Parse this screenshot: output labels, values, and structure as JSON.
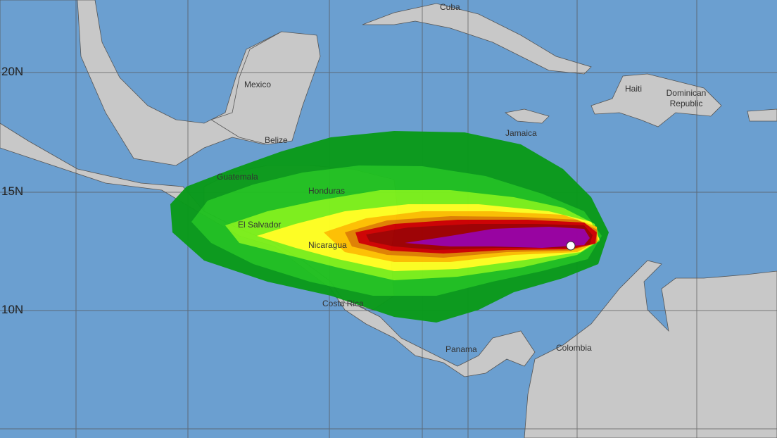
{
  "map": {
    "latitude_labels": [
      "20N",
      "15N",
      "10N"
    ],
    "countries": [
      "Cuba",
      "Mexico",
      "Haiti",
      "Dominican Republic",
      "Belize",
      "Jamaica",
      "Guatemala",
      "Honduras",
      "El Salvador",
      "Nicaragua",
      "Costa Rica",
      "Panama",
      "Colombia"
    ],
    "colors": {
      "ocean": "#6b9fd0",
      "land": "#c8c8c8",
      "band1": "#0a9a1a",
      "band2": "#20c020",
      "band3": "#7cf01a",
      "band4": "#ffff20",
      "band5": "#ffc000",
      "band6": "#e08000",
      "band7": "#d00000",
      "band8": "#a00000",
      "band9": "#9a00a0"
    },
    "storm_position_marker": "white-circle"
  }
}
